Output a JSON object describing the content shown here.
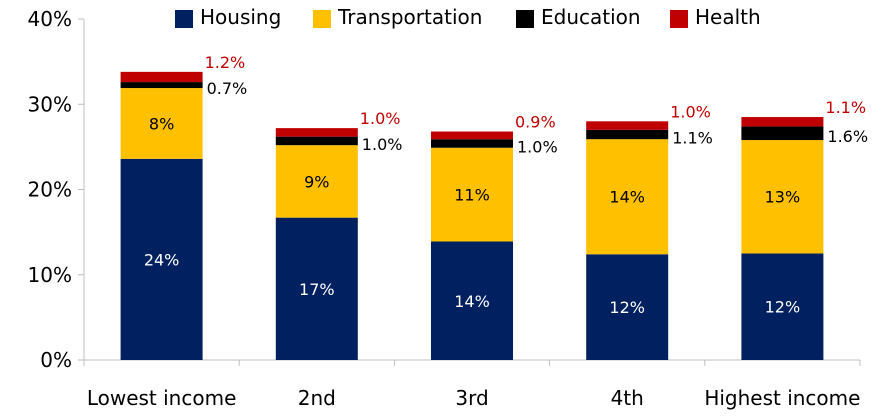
{
  "chart_data": {
    "type": "bar",
    "stacked": true,
    "categories": [
      "Lowest income",
      "2nd",
      "3rd",
      "4th",
      "Highest income"
    ],
    "series": [
      {
        "name": "Housing",
        "color": "#002060",
        "values": [
          23.6,
          16.7,
          13.9,
          12.4,
          12.5
        ],
        "labels": [
          "24%",
          "17%",
          "14%",
          "12%",
          "12%"
        ],
        "label_color": "#ffffff"
      },
      {
        "name": "Transportation",
        "color": "#ffc000",
        "values": [
          8.3,
          8.5,
          11.0,
          13.5,
          13.3
        ],
        "labels": [
          "8%",
          "9%",
          "11%",
          "14%",
          "13%"
        ],
        "label_color": "#000000"
      },
      {
        "name": "Education",
        "color": "#000000",
        "values": [
          0.7,
          1.0,
          1.0,
          1.1,
          1.6
        ],
        "labels": [
          "0.7%",
          "1.0%",
          "1.0%",
          "1.1%",
          "1.6%"
        ],
        "label_color": "#000000"
      },
      {
        "name": "Health",
        "color": "#c00000",
        "values": [
          1.2,
          1.0,
          0.9,
          1.0,
          1.1
        ],
        "labels": [
          "1.2%",
          "1.0%",
          "0.9%",
          "1.0%",
          "1.1%"
        ],
        "label_color": "#c00000"
      }
    ],
    "y_ticks": [
      "0%",
      "10%",
      "20%",
      "30%",
      "40%"
    ],
    "ylim": [
      0,
      40
    ],
    "grid": false,
    "legend": "top-center",
    "title": "",
    "xlabel": "",
    "ylabel": ""
  }
}
